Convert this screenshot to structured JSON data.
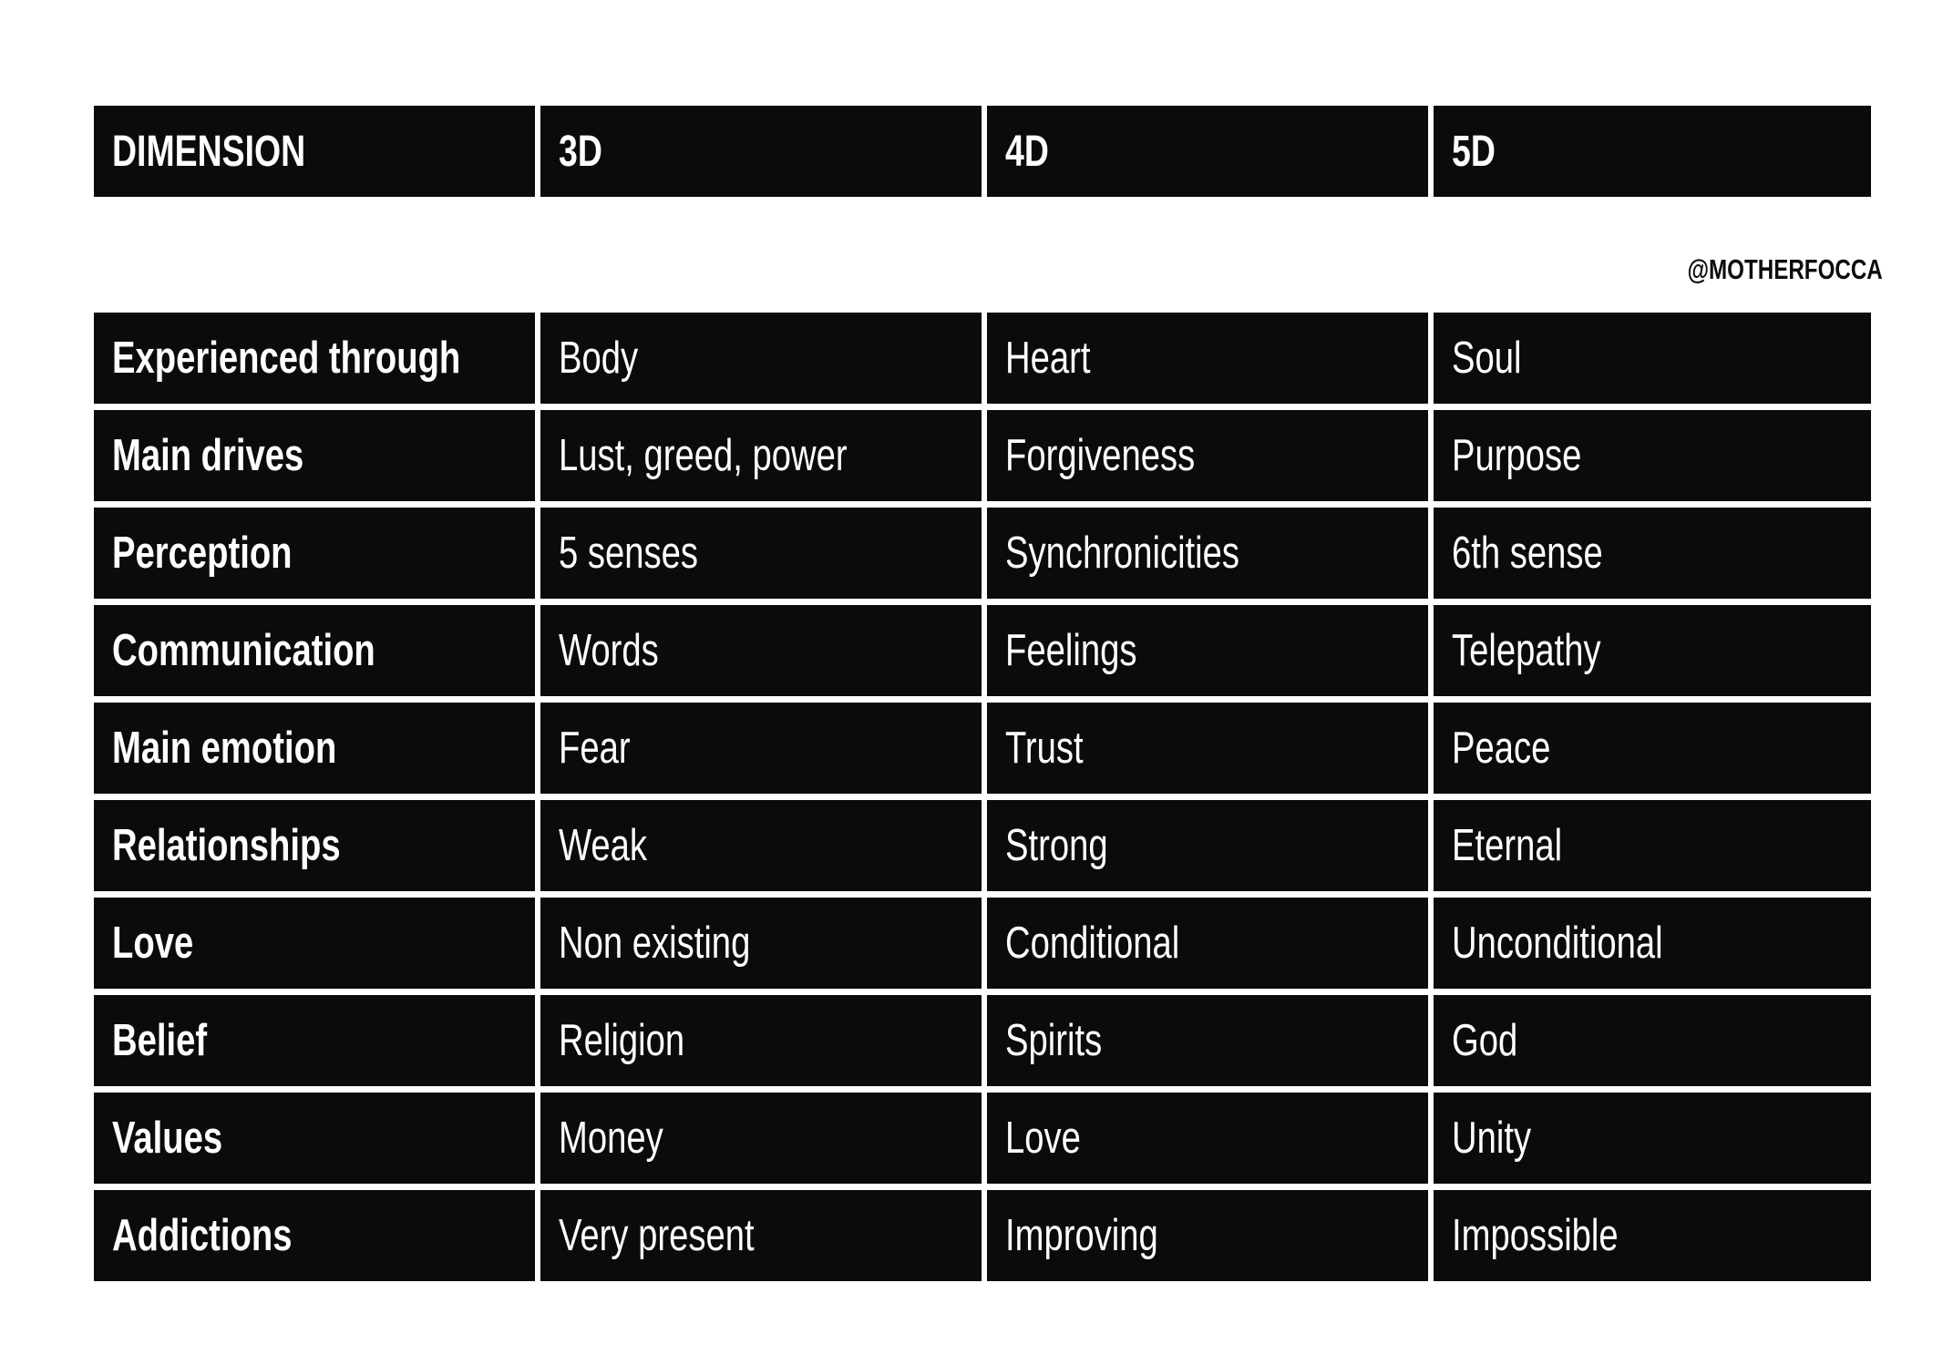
{
  "header": {
    "columns": [
      "DIMENSION",
      "3D",
      "4D",
      "5D"
    ]
  },
  "handle": "@MOTHERFOCCA",
  "rows": [
    {
      "label": "Experienced through",
      "values": [
        "Body",
        "Heart",
        "Soul"
      ]
    },
    {
      "label": "Main drives",
      "values": [
        "Lust, greed, power",
        "Forgiveness",
        "Purpose"
      ]
    },
    {
      "label": "Perception",
      "values": [
        "5 senses",
        "Synchronicities",
        "6th sense"
      ]
    },
    {
      "label": "Communication",
      "values": [
        "Words",
        "Feelings",
        "Telepathy"
      ]
    },
    {
      "label": "Main emotion",
      "values": [
        "Fear",
        "Trust",
        "Peace"
      ]
    },
    {
      "label": "Relationships",
      "values": [
        "Weak",
        "Strong",
        "Eternal"
      ]
    },
    {
      "label": "Love",
      "values": [
        "Non existing",
        "Conditional",
        "Unconditional"
      ]
    },
    {
      "label": "Belief",
      "values": [
        "Religion",
        "Spirits",
        "God"
      ]
    },
    {
      "label": "Values",
      "values": [
        "Money",
        "Love",
        "Unity"
      ]
    },
    {
      "label": "Addictions",
      "values": [
        "Very present",
        "Improving",
        "Impossible"
      ]
    }
  ]
}
